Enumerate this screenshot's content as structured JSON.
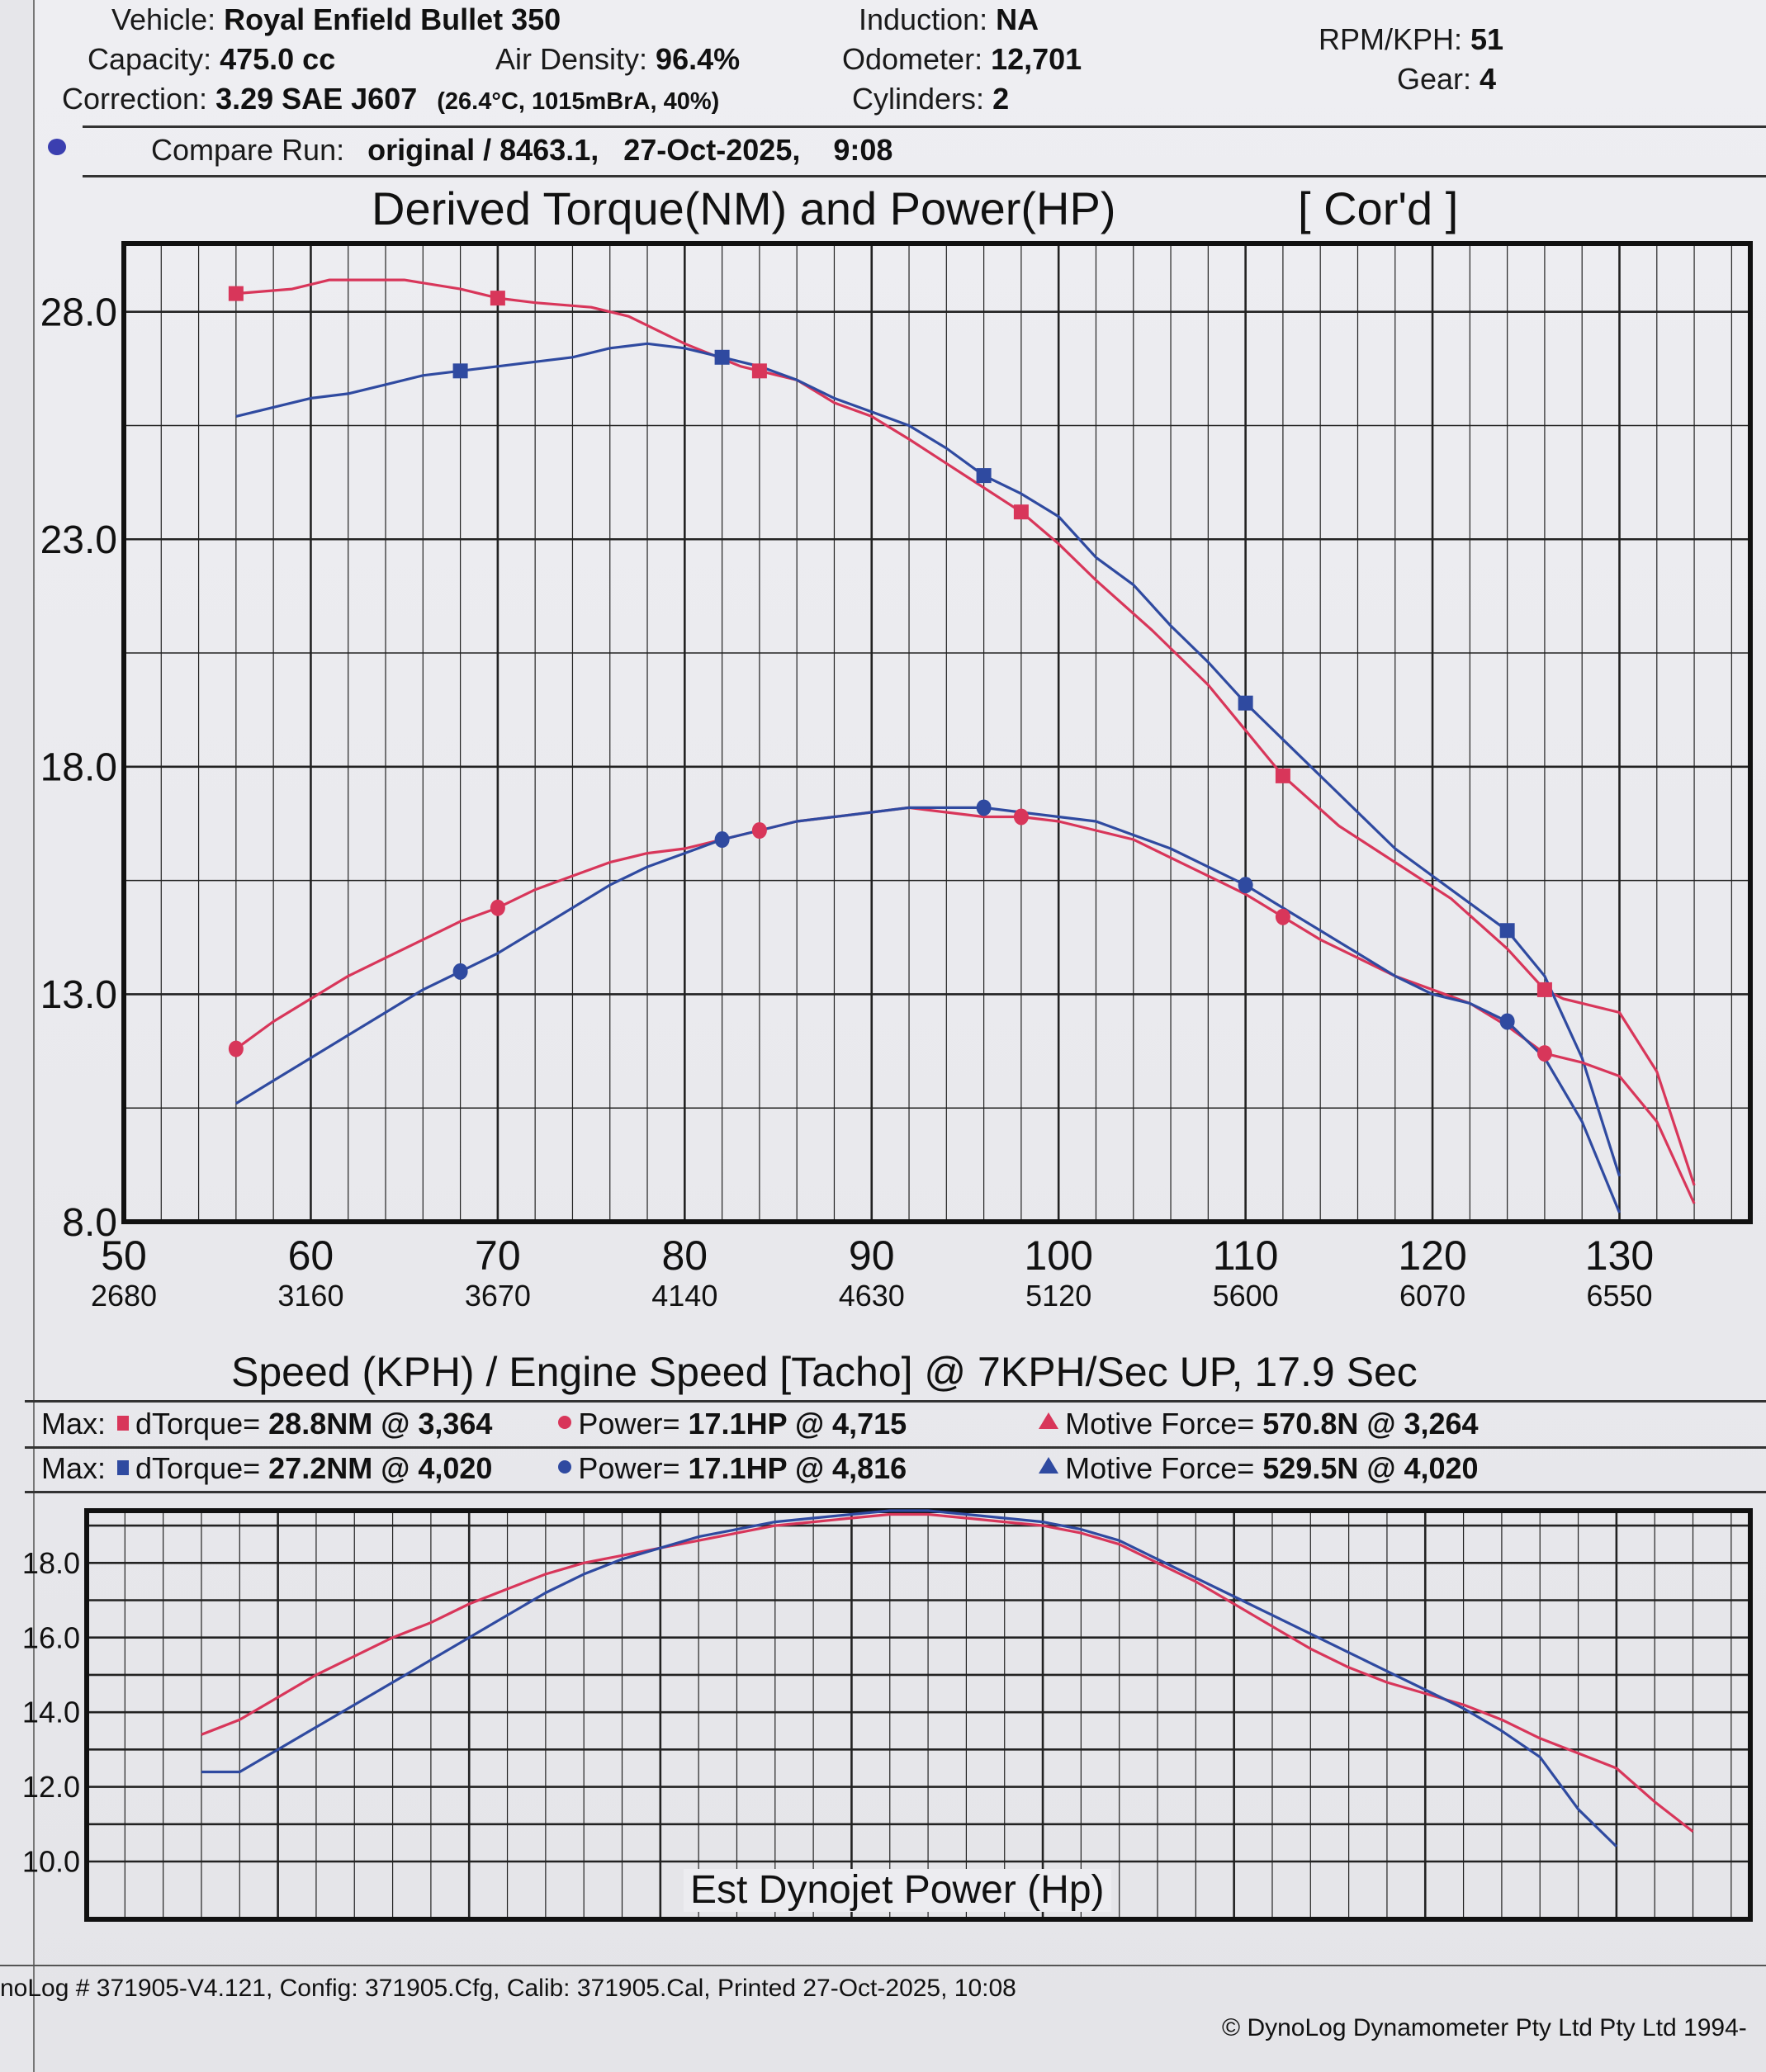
{
  "header": {
    "vehicle_label": "Vehicle:",
    "vehicle": "Royal Enfield Bullet 350",
    "capacity_label": "Capacity:",
    "capacity": "475.0 cc",
    "air_density_label": "Air Density:",
    "air_density": "96.4%",
    "correction_label": "Correction:",
    "correction": "3.29 SAE J607",
    "conditions": "(26.4°C, 1015mBrA, 40%)",
    "induction_label": "Induction:",
    "induction": "NA",
    "odometer_label": "Odometer:",
    "odometer": "12,701",
    "cylinders_label": "Cylinders:",
    "cylinders": "2",
    "rpm_kph_label": "RPM/KPH:",
    "rpm_kph": "51",
    "gear_label": "Gear:",
    "gear": "4",
    "compare_label": "Compare Run:",
    "compare_run": "original / 8463.1,",
    "compare_date": "27-Oct-2025,",
    "compare_time": "9:08"
  },
  "colors": {
    "run_red": "#d8365a",
    "run_blue": "#2f4aa0",
    "grid": "#222222"
  },
  "chart_data": [
    {
      "type": "line",
      "title": "Derived Torque(NM) and Power(HP)",
      "badge": "[ Cor'd ]",
      "xlabel": "Speed (KPH) / Engine Speed [Tacho] @ 7KPH/Sec UP, 17.9 Sec",
      "ylabel": "",
      "xlim": [
        50,
        137
      ],
      "ylim": [
        8,
        29.5
      ],
      "x_ticks": [
        50,
        60,
        70,
        80,
        90,
        100,
        110,
        120,
        130
      ],
      "x_tick_labels": [
        "50",
        "60",
        "70",
        "80",
        "90",
        "100",
        "110",
        "120",
        "130"
      ],
      "x_tick_rpm": [
        "2680",
        "3160",
        "3670",
        "4140",
        "4630",
        "5120",
        "5600",
        "6070",
        "6550"
      ],
      "y_ticks": [
        8,
        13,
        18,
        23,
        28
      ],
      "y_tick_labels": [
        "8.0",
        "13.0",
        "18.0",
        "23.0",
        "28.0"
      ],
      "grid": true,
      "series": [
        {
          "name": "dTorque (red run)",
          "color": "#d8365a",
          "marker": "square",
          "x": [
            56,
            59,
            61,
            63,
            65,
            68,
            70,
            72,
            75,
            77,
            80,
            83,
            86,
            88,
            90,
            92,
            95,
            98,
            100,
            102,
            105,
            108,
            110,
            112,
            115,
            118,
            121,
            124,
            126,
            127,
            130,
            132,
            134
          ],
          "y": [
            28.4,
            28.5,
            28.7,
            28.7,
            28.7,
            28.5,
            28.3,
            28.2,
            28.1,
            27.9,
            27.3,
            26.8,
            26.5,
            26.0,
            25.7,
            25.2,
            24.4,
            23.6,
            22.9,
            22.1,
            21.0,
            19.8,
            18.8,
            17.8,
            16.7,
            15.9,
            15.1,
            14.0,
            13.1,
            12.9,
            12.6,
            11.3,
            8.8
          ],
          "marker_x": [
            56,
            70,
            84,
            98,
            112,
            126
          ]
        },
        {
          "name": "dTorque (blue run)",
          "color": "#2f4aa0",
          "marker": "square",
          "x": [
            56,
            58,
            60,
            62,
            64,
            66,
            68,
            70,
            72,
            74,
            76,
            78,
            80,
            82,
            84,
            86,
            88,
            90,
            92,
            94,
            96,
            98,
            100,
            102,
            104,
            106,
            108,
            110,
            112,
            115,
            118,
            121,
            124,
            126,
            128,
            130
          ],
          "y": [
            25.7,
            25.9,
            26.1,
            26.2,
            26.4,
            26.6,
            26.7,
            26.8,
            26.9,
            27.0,
            27.2,
            27.3,
            27.2,
            27.0,
            26.8,
            26.5,
            26.1,
            25.8,
            25.5,
            25.0,
            24.4,
            24.0,
            23.5,
            22.6,
            22.0,
            21.1,
            20.3,
            19.4,
            18.6,
            17.4,
            16.2,
            15.3,
            14.4,
            13.4,
            11.6,
            9.0
          ],
          "marker_x": [
            68,
            82,
            96,
            110,
            124
          ]
        },
        {
          "name": "Power (red run)",
          "color": "#d8365a",
          "marker": "circle",
          "x": [
            56,
            58,
            60,
            62,
            64,
            66,
            68,
            70,
            72,
            74,
            76,
            78,
            80,
            82,
            84,
            86,
            88,
            90,
            92,
            94,
            96,
            98,
            100,
            102,
            104,
            106,
            108,
            110,
            112,
            114,
            116,
            118,
            120,
            122,
            124,
            126,
            128,
            130,
            132,
            134
          ],
          "y": [
            11.8,
            12.4,
            12.9,
            13.4,
            13.8,
            14.2,
            14.6,
            14.9,
            15.3,
            15.6,
            15.9,
            16.1,
            16.2,
            16.4,
            16.6,
            16.8,
            16.9,
            17.0,
            17.1,
            17.0,
            16.9,
            16.9,
            16.8,
            16.6,
            16.4,
            16.0,
            15.6,
            15.2,
            14.7,
            14.2,
            13.8,
            13.4,
            13.1,
            12.8,
            12.3,
            11.7,
            11.5,
            11.2,
            10.2,
            8.4
          ],
          "marker_x": [
            56,
            70,
            84,
            98,
            112,
            126
          ]
        },
        {
          "name": "Power (blue run)",
          "color": "#2f4aa0",
          "marker": "circle",
          "x": [
            56,
            58,
            60,
            62,
            64,
            66,
            68,
            70,
            72,
            74,
            76,
            78,
            80,
            82,
            84,
            86,
            88,
            90,
            92,
            94,
            96,
            98,
            100,
            102,
            104,
            106,
            108,
            110,
            112,
            114,
            116,
            118,
            120,
            122,
            124,
            126,
            128,
            130
          ],
          "y": [
            10.6,
            11.1,
            11.6,
            12.1,
            12.6,
            13.1,
            13.5,
            13.9,
            14.4,
            14.9,
            15.4,
            15.8,
            16.1,
            16.4,
            16.6,
            16.8,
            16.9,
            17.0,
            17.1,
            17.1,
            17.1,
            17.0,
            16.9,
            16.8,
            16.5,
            16.2,
            15.8,
            15.4,
            14.9,
            14.4,
            13.9,
            13.4,
            13.0,
            12.8,
            12.4,
            11.6,
            10.2,
            8.2
          ],
          "marker_x": [
            68,
            82,
            96,
            110,
            124
          ]
        }
      ]
    },
    {
      "type": "line",
      "title": "Est Dynojet Power (Hp)",
      "xlim": [
        50,
        137
      ],
      "ylim": [
        10,
        19.4
      ],
      "y_ticks": [
        10,
        12,
        14,
        16,
        18
      ],
      "y_tick_labels": [
        "10.0",
        "12.0",
        "14.0",
        "16.0",
        "18.0"
      ],
      "grid": true,
      "series": [
        {
          "name": "Est Dynojet Power (red run)",
          "color": "#d8365a",
          "x": [
            56,
            58,
            60,
            62,
            64,
            66,
            68,
            70,
            72,
            74,
            76,
            78,
            80,
            82,
            84,
            86,
            88,
            90,
            92,
            94,
            96,
            98,
            100,
            102,
            104,
            106,
            108,
            110,
            112,
            114,
            116,
            118,
            120,
            122,
            124,
            126,
            128,
            130,
            132,
            134
          ],
          "y": [
            13.4,
            13.8,
            14.4,
            15.0,
            15.5,
            16.0,
            16.4,
            16.9,
            17.3,
            17.7,
            18.0,
            18.2,
            18.4,
            18.6,
            18.8,
            19.0,
            19.1,
            19.2,
            19.3,
            19.3,
            19.2,
            19.1,
            19.0,
            18.8,
            18.5,
            18.0,
            17.5,
            16.9,
            16.3,
            15.7,
            15.2,
            14.8,
            14.5,
            14.2,
            13.8,
            13.3,
            12.9,
            12.5,
            11.6,
            10.8
          ],
          "y_end": 10.8
        },
        {
          "name": "Est Dynojet Power (blue run)",
          "color": "#2f4aa0",
          "x": [
            56,
            58,
            60,
            62,
            64,
            66,
            68,
            70,
            72,
            74,
            76,
            78,
            80,
            82,
            84,
            86,
            88,
            90,
            92,
            94,
            96,
            98,
            100,
            102,
            104,
            106,
            108,
            110,
            112,
            114,
            116,
            118,
            120,
            122,
            124,
            126,
            128,
            130
          ],
          "y": [
            12.4,
            12.4,
            13.0,
            13.6,
            14.2,
            14.8,
            15.4,
            16.0,
            16.6,
            17.2,
            17.7,
            18.1,
            18.4,
            18.7,
            18.9,
            19.1,
            19.2,
            19.3,
            19.4,
            19.4,
            19.3,
            19.2,
            19.1,
            18.9,
            18.6,
            18.1,
            17.6,
            17.1,
            16.6,
            16.1,
            15.6,
            15.1,
            14.6,
            14.1,
            13.5,
            12.8,
            11.4,
            10.4
          ]
        }
      ]
    }
  ],
  "max_summary": [
    {
      "label": "Max:",
      "torque_name": "dTorque=",
      "torque": "28.8NM @ 3,364",
      "power_name": "Power=",
      "power": "17.1HP @ 4,715",
      "force_name": "Motive Force=",
      "force": "570.8N @ 3,264",
      "color": "#d8365a"
    },
    {
      "label": "Max:",
      "torque_name": "dTorque=",
      "torque": "27.2NM @ 4,020",
      "power_name": "Power=",
      "power": "17.1HP @ 4,816",
      "force_name": "Motive Force=",
      "force": "529.5N @ 4,020",
      "color": "#2f4aa0"
    }
  ],
  "footer": {
    "left": "noLog # 371905-V4.121, Config: 371905.Cfg, Calib: 371905.Cal, Printed 27-Oct-2025, 10:08",
    "right": "© DynoLog Dynamometer Pty Ltd Pty Ltd 1994-"
  }
}
